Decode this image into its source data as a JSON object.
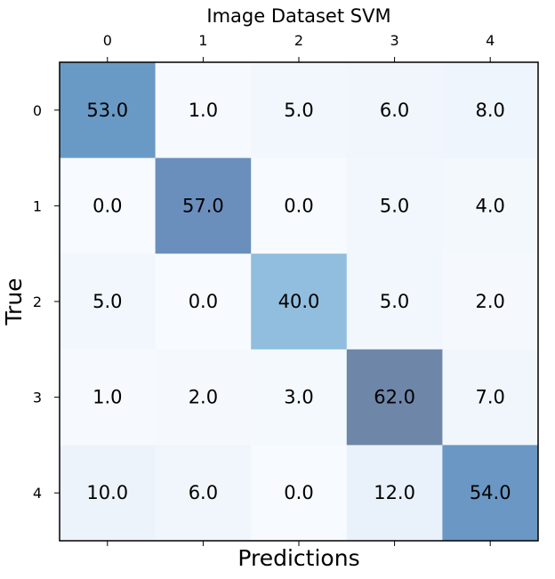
{
  "chart_data": {
    "type": "heatmap",
    "title": "Image Dataset SVM",
    "xlabel": "Predictions",
    "ylabel": "True",
    "x_categories": [
      "0",
      "1",
      "2",
      "3",
      "4"
    ],
    "y_categories": [
      "0",
      "1",
      "2",
      "3",
      "4"
    ],
    "values": [
      [
        53.0,
        1.0,
        5.0,
        6.0,
        8.0
      ],
      [
        0.0,
        57.0,
        0.0,
        5.0,
        4.0
      ],
      [
        5.0,
        0.0,
        40.0,
        5.0,
        2.0
      ],
      [
        1.0,
        2.0,
        3.0,
        62.0,
        7.0
      ],
      [
        10.0,
        6.0,
        0.0,
        12.0,
        54.0
      ]
    ],
    "value_format": "one decimal",
    "x_tick_position": "top",
    "colormap": "Blues",
    "colors": {
      "low": "#f7fbff",
      "mid": "#deebf7",
      "high": "#2c6ab0",
      "max": "#6e86a8"
    },
    "grid": false,
    "legend": false
  }
}
